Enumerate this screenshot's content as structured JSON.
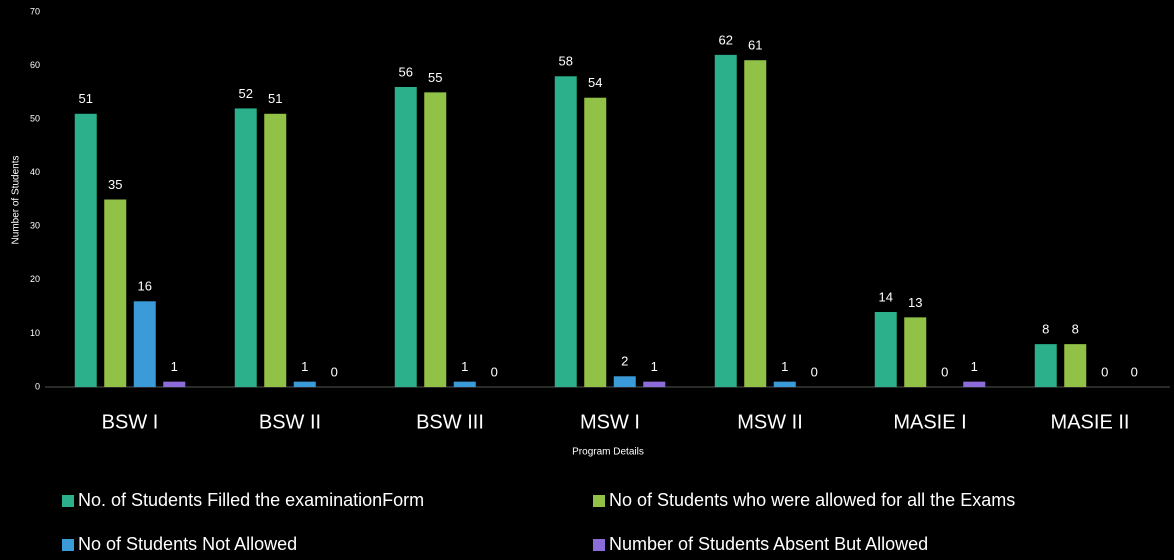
{
  "chart_data": {
    "type": "bar",
    "x_label": "Program Details",
    "y_label": "Number of Students",
    "categories": [
      "BSW I",
      "BSW II",
      "BSW III",
      "MSW I",
      "MSW II",
      "MASIE I",
      "MASIE II"
    ],
    "series": [
      {
        "name": "No. of Students Filled the examinationForm",
        "color": "#2bb08b",
        "values": [
          51,
          52,
          56,
          58,
          62,
          14,
          8
        ]
      },
      {
        "name": "No of Students who were allowed for all the Exams",
        "color": "#92c147",
        "values": [
          35,
          51,
          55,
          54,
          61,
          13,
          8
        ]
      },
      {
        "name": "No of Students Not Allowed",
        "color": "#3b9ad8",
        "values": [
          16,
          1,
          1,
          2,
          1,
          0,
          0
        ]
      },
      {
        "name": "Number of Students Absent But Allowed",
        "color": "#8b6cd9",
        "values": [
          1,
          0,
          0,
          1,
          0,
          1,
          0
        ]
      }
    ],
    "ylim": [
      0,
      70
    ],
    "yticks": [
      0,
      10,
      20,
      30,
      40,
      50,
      60,
      70
    ],
    "grid": false
  }
}
